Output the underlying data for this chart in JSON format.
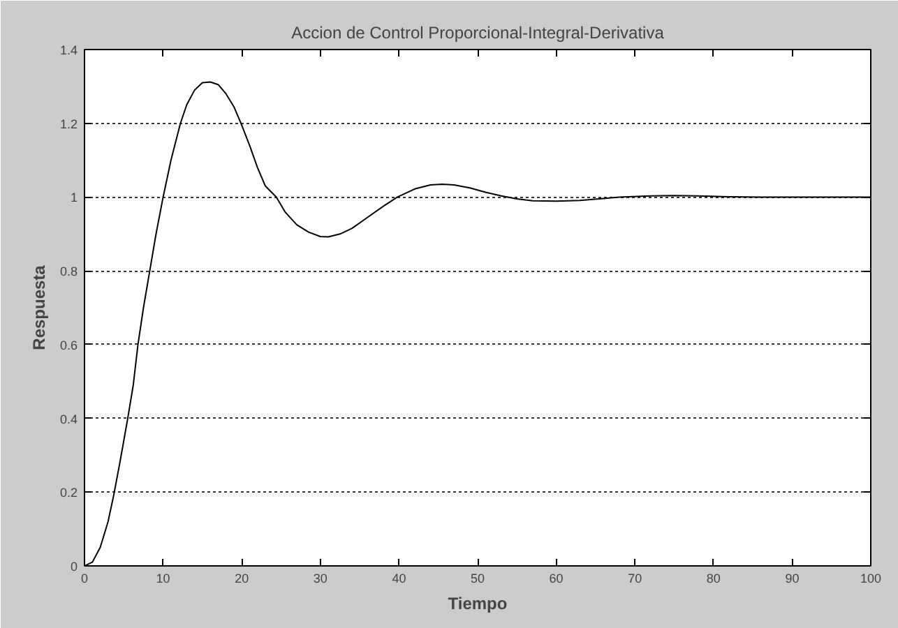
{
  "chart_data": {
    "type": "line",
    "title": "Accion de Control Proporcional-Integral-Derivativa",
    "xlabel": "Tiempo",
    "ylabel": "Respuesta",
    "x": [
      0,
      1,
      2,
      3,
      3.7,
      4.5,
      5.5,
      6.2,
      6.8,
      7.5,
      8.3,
      9.1,
      10,
      11,
      12.2,
      13,
      14,
      15,
      16,
      17,
      18,
      19,
      19.9,
      21,
      22,
      23,
      24.4,
      25.5,
      27,
      28.5,
      30,
      31,
      32.5,
      34,
      36,
      38,
      39.8,
      42,
      44,
      45.5,
      47,
      49,
      51,
      53,
      55,
      57,
      60,
      63,
      66,
      68,
      72,
      75,
      78,
      82,
      86,
      90,
      95,
      100
    ],
    "series": [
      {
        "color": "#000000",
        "values": [
          0,
          0.01,
          0.05,
          0.12,
          0.19,
          0.28,
          0.4,
          0.49,
          0.6,
          0.7,
          0.8,
          0.9,
          1.0,
          1.1,
          1.2,
          1.25,
          1.29,
          1.31,
          1.312,
          1.305,
          1.28,
          1.245,
          1.2,
          1.14,
          1.08,
          1.03,
          1.0,
          0.96,
          0.925,
          0.905,
          0.893,
          0.892,
          0.9,
          0.915,
          0.945,
          0.975,
          1.0,
          1.022,
          1.033,
          1.035,
          1.033,
          1.025,
          1.013,
          1.003,
          0.995,
          0.99,
          0.989,
          0.991,
          0.996,
          1.0,
          1.003,
          1.004,
          1.003,
          1.001,
          1.0,
          1.0,
          1.0,
          1.0
        ]
      }
    ],
    "xlim": [
      0,
      100
    ],
    "ylim": [
      0,
      1.4
    ],
    "xticks": [
      0,
      10,
      20,
      30,
      40,
      50,
      60,
      70,
      80,
      90,
      100
    ],
    "yticks": [
      0,
      0.2,
      0.4,
      0.6,
      0.8,
      1,
      1.2,
      1.4
    ],
    "grid": "y",
    "line_style": "solid"
  }
}
